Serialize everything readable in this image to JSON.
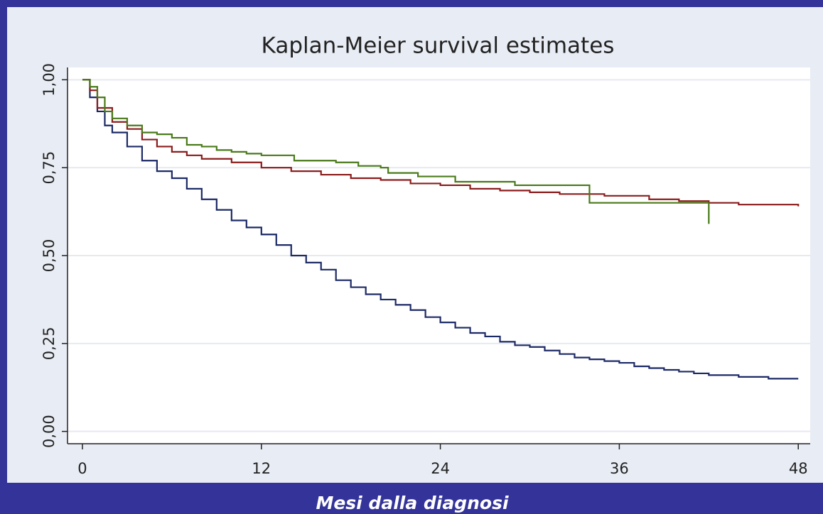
{
  "chart_data": {
    "type": "step",
    "title": "Kaplan-Meier survival estimates",
    "xlabel": "Mesi dalla diagnosi",
    "xlim": [
      -1,
      48.8
    ],
    "ylim": [
      -0.035,
      1.035
    ],
    "xticks": [
      0,
      12,
      24,
      36,
      48
    ],
    "yticks": [
      {
        "value": 0,
        "label": "0,00"
      },
      {
        "value": 0.25,
        "label": "0,25"
      },
      {
        "value": 0.5,
        "label": "0,50"
      },
      {
        "value": 0.75,
        "label": "0,75"
      },
      {
        "value": 1,
        "label": "1,00"
      }
    ],
    "grid": true,
    "series": [
      {
        "color": "#1c2a66",
        "x": [
          0,
          0.5,
          1,
          1.5,
          2,
          3,
          4,
          5,
          6,
          7,
          8,
          9,
          10,
          11,
          12,
          13,
          14,
          15,
          16,
          17,
          18,
          19,
          20,
          21,
          22,
          23,
          24,
          25,
          26,
          27,
          28,
          29,
          30,
          31,
          32,
          33,
          34,
          35,
          36,
          37,
          38,
          39,
          40,
          41,
          42,
          44,
          46,
          48
        ],
        "values": [
          1.0,
          0.95,
          0.91,
          0.87,
          0.85,
          0.81,
          0.77,
          0.74,
          0.72,
          0.69,
          0.66,
          0.63,
          0.6,
          0.58,
          0.56,
          0.53,
          0.5,
          0.48,
          0.46,
          0.43,
          0.41,
          0.39,
          0.375,
          0.36,
          0.345,
          0.325,
          0.31,
          0.295,
          0.28,
          0.27,
          0.255,
          0.245,
          0.24,
          0.23,
          0.22,
          0.21,
          0.205,
          0.2,
          0.195,
          0.185,
          0.18,
          0.175,
          0.17,
          0.165,
          0.16,
          0.155,
          0.15,
          0.15
        ]
      },
      {
        "color": "#8b1c1c",
        "x": [
          0,
          0.5,
          1,
          2,
          3,
          4,
          5,
          6,
          7,
          8,
          10,
          12,
          14,
          16,
          18,
          20,
          22,
          24,
          26,
          28,
          30,
          32,
          34,
          35,
          38,
          40,
          42,
          44,
          46,
          48
        ],
        "values": [
          1.0,
          0.97,
          0.92,
          0.88,
          0.86,
          0.83,
          0.81,
          0.795,
          0.785,
          0.775,
          0.765,
          0.75,
          0.74,
          0.73,
          0.72,
          0.715,
          0.705,
          0.7,
          0.69,
          0.685,
          0.68,
          0.675,
          0.675,
          0.67,
          0.66,
          0.655,
          0.65,
          0.645,
          0.645,
          0.64
        ]
      },
      {
        "color": "#4a7a1a",
        "x": [
          0,
          0.5,
          1,
          1.5,
          2,
          3,
          4,
          5,
          6,
          7,
          8,
          9,
          10,
          11,
          12,
          14,
          14.2,
          17,
          18.5,
          20,
          20.5,
          22.5,
          25,
          29,
          33.9,
          34,
          42
        ],
        "values": [
          1.0,
          0.98,
          0.95,
          0.91,
          0.89,
          0.87,
          0.85,
          0.845,
          0.835,
          0.815,
          0.81,
          0.8,
          0.795,
          0.79,
          0.785,
          0.785,
          0.77,
          0.765,
          0.755,
          0.75,
          0.735,
          0.725,
          0.71,
          0.7,
          0.7,
          0.65,
          0.59
        ]
      }
    ]
  }
}
